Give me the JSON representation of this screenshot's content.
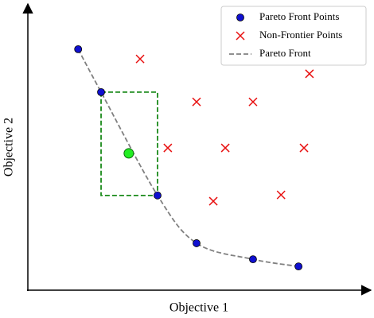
{
  "chart_data": {
    "type": "scatter",
    "x_label": "Objective 1",
    "y_label": "Objective 2",
    "xlim": [
      0,
      10
    ],
    "ylim": [
      0,
      10
    ],
    "series": [
      {
        "name": "Pareto Front Points",
        "type": "scatter",
        "marker": "circle",
        "color": "#1010d0",
        "x": [
          1.47,
          2.14,
          3.79,
          4.93,
          6.58,
          7.91
        ],
        "values": [
          8.42,
          6.92,
          3.31,
          1.64,
          1.08,
          0.83
        ]
      },
      {
        "name": "Non-Frontier Points",
        "type": "scatter",
        "marker": "cross",
        "color": "#e81010",
        "x": [
          3.28,
          8.23,
          4.93,
          6.58,
          4.09,
          5.77,
          8.07,
          5.42,
          7.4
        ],
        "values": [
          8.08,
          7.56,
          6.58,
          6.58,
          4.97,
          4.97,
          4.97,
          3.11,
          3.33
        ]
      },
      {
        "name": "Pareto Front",
        "type": "line",
        "style": "dashed",
        "color": "#808080",
        "x": [
          1.47,
          2.14,
          3.79,
          4.93,
          6.58,
          7.91
        ],
        "values": [
          8.42,
          6.92,
          3.31,
          1.64,
          1.08,
          0.83
        ]
      }
    ],
    "selected_point": {
      "x": 2.95,
      "value": 4.78,
      "color": "#22ee22"
    },
    "selection_box": {
      "x": [
        2.14,
        3.79
      ],
      "values": [
        3.31,
        6.92
      ],
      "color": "#1a8a1a"
    },
    "legend": "upper right"
  }
}
